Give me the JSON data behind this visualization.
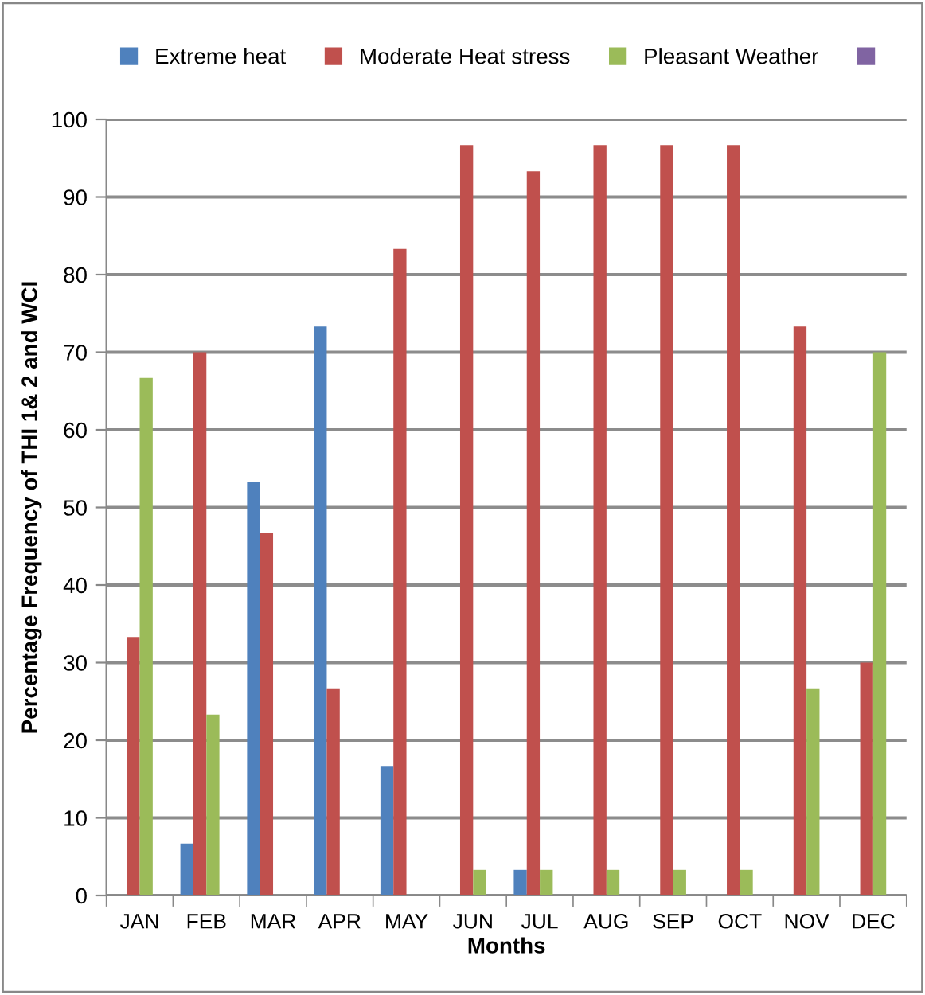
{
  "chart_data": {
    "type": "bar",
    "xlabel": "Months",
    "ylabel": "Percentage Frequency of THI 1& 2 and WCI",
    "categories": [
      "JAN",
      "FEB",
      "MAR",
      "APR",
      "MAY",
      "JUN",
      "JUL",
      "AUG",
      "SEP",
      "OCT",
      "NOV",
      "DEC"
    ],
    "series": [
      {
        "name": "Extreme heat",
        "color": "#4f81bd",
        "values": [
          0,
          6.7,
          53.3,
          73.3,
          16.7,
          0,
          3.3,
          0,
          0,
          0,
          0,
          0
        ]
      },
      {
        "name": "Moderate Heat stress",
        "color": "#c0504d",
        "values": [
          33.3,
          70,
          46.7,
          26.7,
          83.3,
          96.7,
          93.3,
          96.7,
          96.7,
          96.7,
          73.3,
          30
        ]
      },
      {
        "name": "Pleasant Weather",
        "color": "#9bbb59",
        "values": [
          66.7,
          23.3,
          0,
          0,
          0,
          3.3,
          3.3,
          3.3,
          3.3,
          3.3,
          26.7,
          70
        ]
      },
      {
        "color": "#8064a2",
        "values": [
          null,
          null,
          null,
          null,
          null,
          null,
          null,
          null,
          null,
          null,
          null,
          null
        ]
      }
    ],
    "ylim": [
      0,
      100
    ],
    "yticks": [
      0,
      10,
      20,
      30,
      40,
      50,
      60,
      70,
      80,
      90,
      100
    ],
    "grid": "y",
    "legend": "top"
  }
}
